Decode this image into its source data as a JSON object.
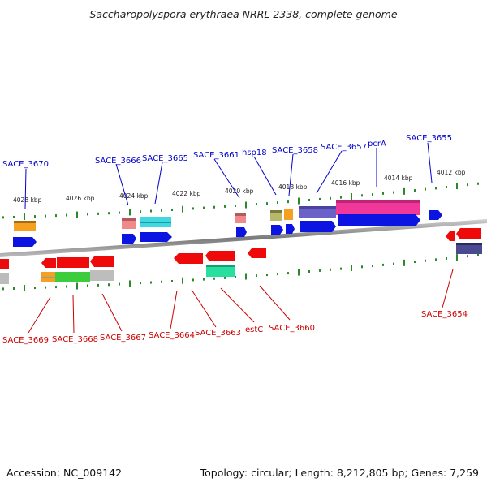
{
  "title": "Saccharopolyspora erythraea NRRL 2338, complete genome",
  "footer": {
    "accession": "Accession: NC_009142",
    "topology": "Topology: circular; Length: 8,212,805 bp; Genes: 7,259"
  },
  "colors": {
    "forward_label": "#0000cc",
    "reverse_label": "#cc0000",
    "backbone": "#888888",
    "tick": "#2a8a2a"
  },
  "kbp_labels": [
    "4028 kbp",
    "4026 kbp",
    "4024 kbp",
    "4022 kbp",
    "4020 kbp",
    "4018 kbp",
    "4016 kbp",
    "4014 kbp",
    "4012 kbp"
  ],
  "forward_labels": [
    "SACE_3670",
    "SACE_3666",
    "SACE_3665",
    "SACE_3661",
    "hsp18",
    "SACE_3658",
    "SACE_3657",
    "pcrA",
    "SACE_3655"
  ],
  "reverse_labels": [
    "SACE_3669",
    "SACE_3668",
    "SACE_3667",
    "SACE_3664",
    "SACE_3663",
    "estC",
    "SACE_3660",
    "SACE_3654"
  ]
}
